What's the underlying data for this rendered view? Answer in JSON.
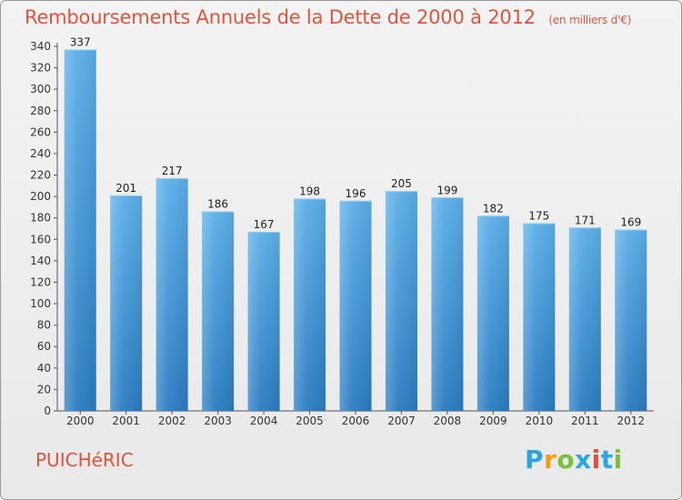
{
  "title": "Remboursements Annuels de la Dette de 2000 à 2012",
  "unit": "(en milliers d'€)",
  "place": "PUICHéRIC",
  "logo": {
    "letters": [
      "P",
      "r",
      "o",
      "x",
      "i",
      "t",
      "i"
    ],
    "colors": [
      "#2aa7e0",
      "#f39c12",
      "#7dbf3c",
      "#2aa7e0",
      "#e74c3c",
      "#2aa7e0",
      "#7dbf3c"
    ]
  },
  "colors": {
    "bar_top": "#5aaee8",
    "bar_bottom": "#2a7bc0",
    "title": "#e0543c"
  },
  "chart_data": {
    "type": "bar",
    "categories": [
      "2000",
      "2001",
      "2002",
      "2003",
      "2004",
      "2005",
      "2006",
      "2007",
      "2008",
      "2009",
      "2010",
      "2011",
      "2012"
    ],
    "values": [
      337,
      201,
      217,
      186,
      167,
      198,
      196,
      205,
      199,
      182,
      175,
      171,
      169
    ],
    "ylim": [
      0,
      340
    ],
    "yticks": [
      0,
      20,
      40,
      60,
      80,
      100,
      120,
      140,
      160,
      180,
      200,
      220,
      240,
      260,
      280,
      300,
      320,
      340
    ],
    "grid": false
  }
}
